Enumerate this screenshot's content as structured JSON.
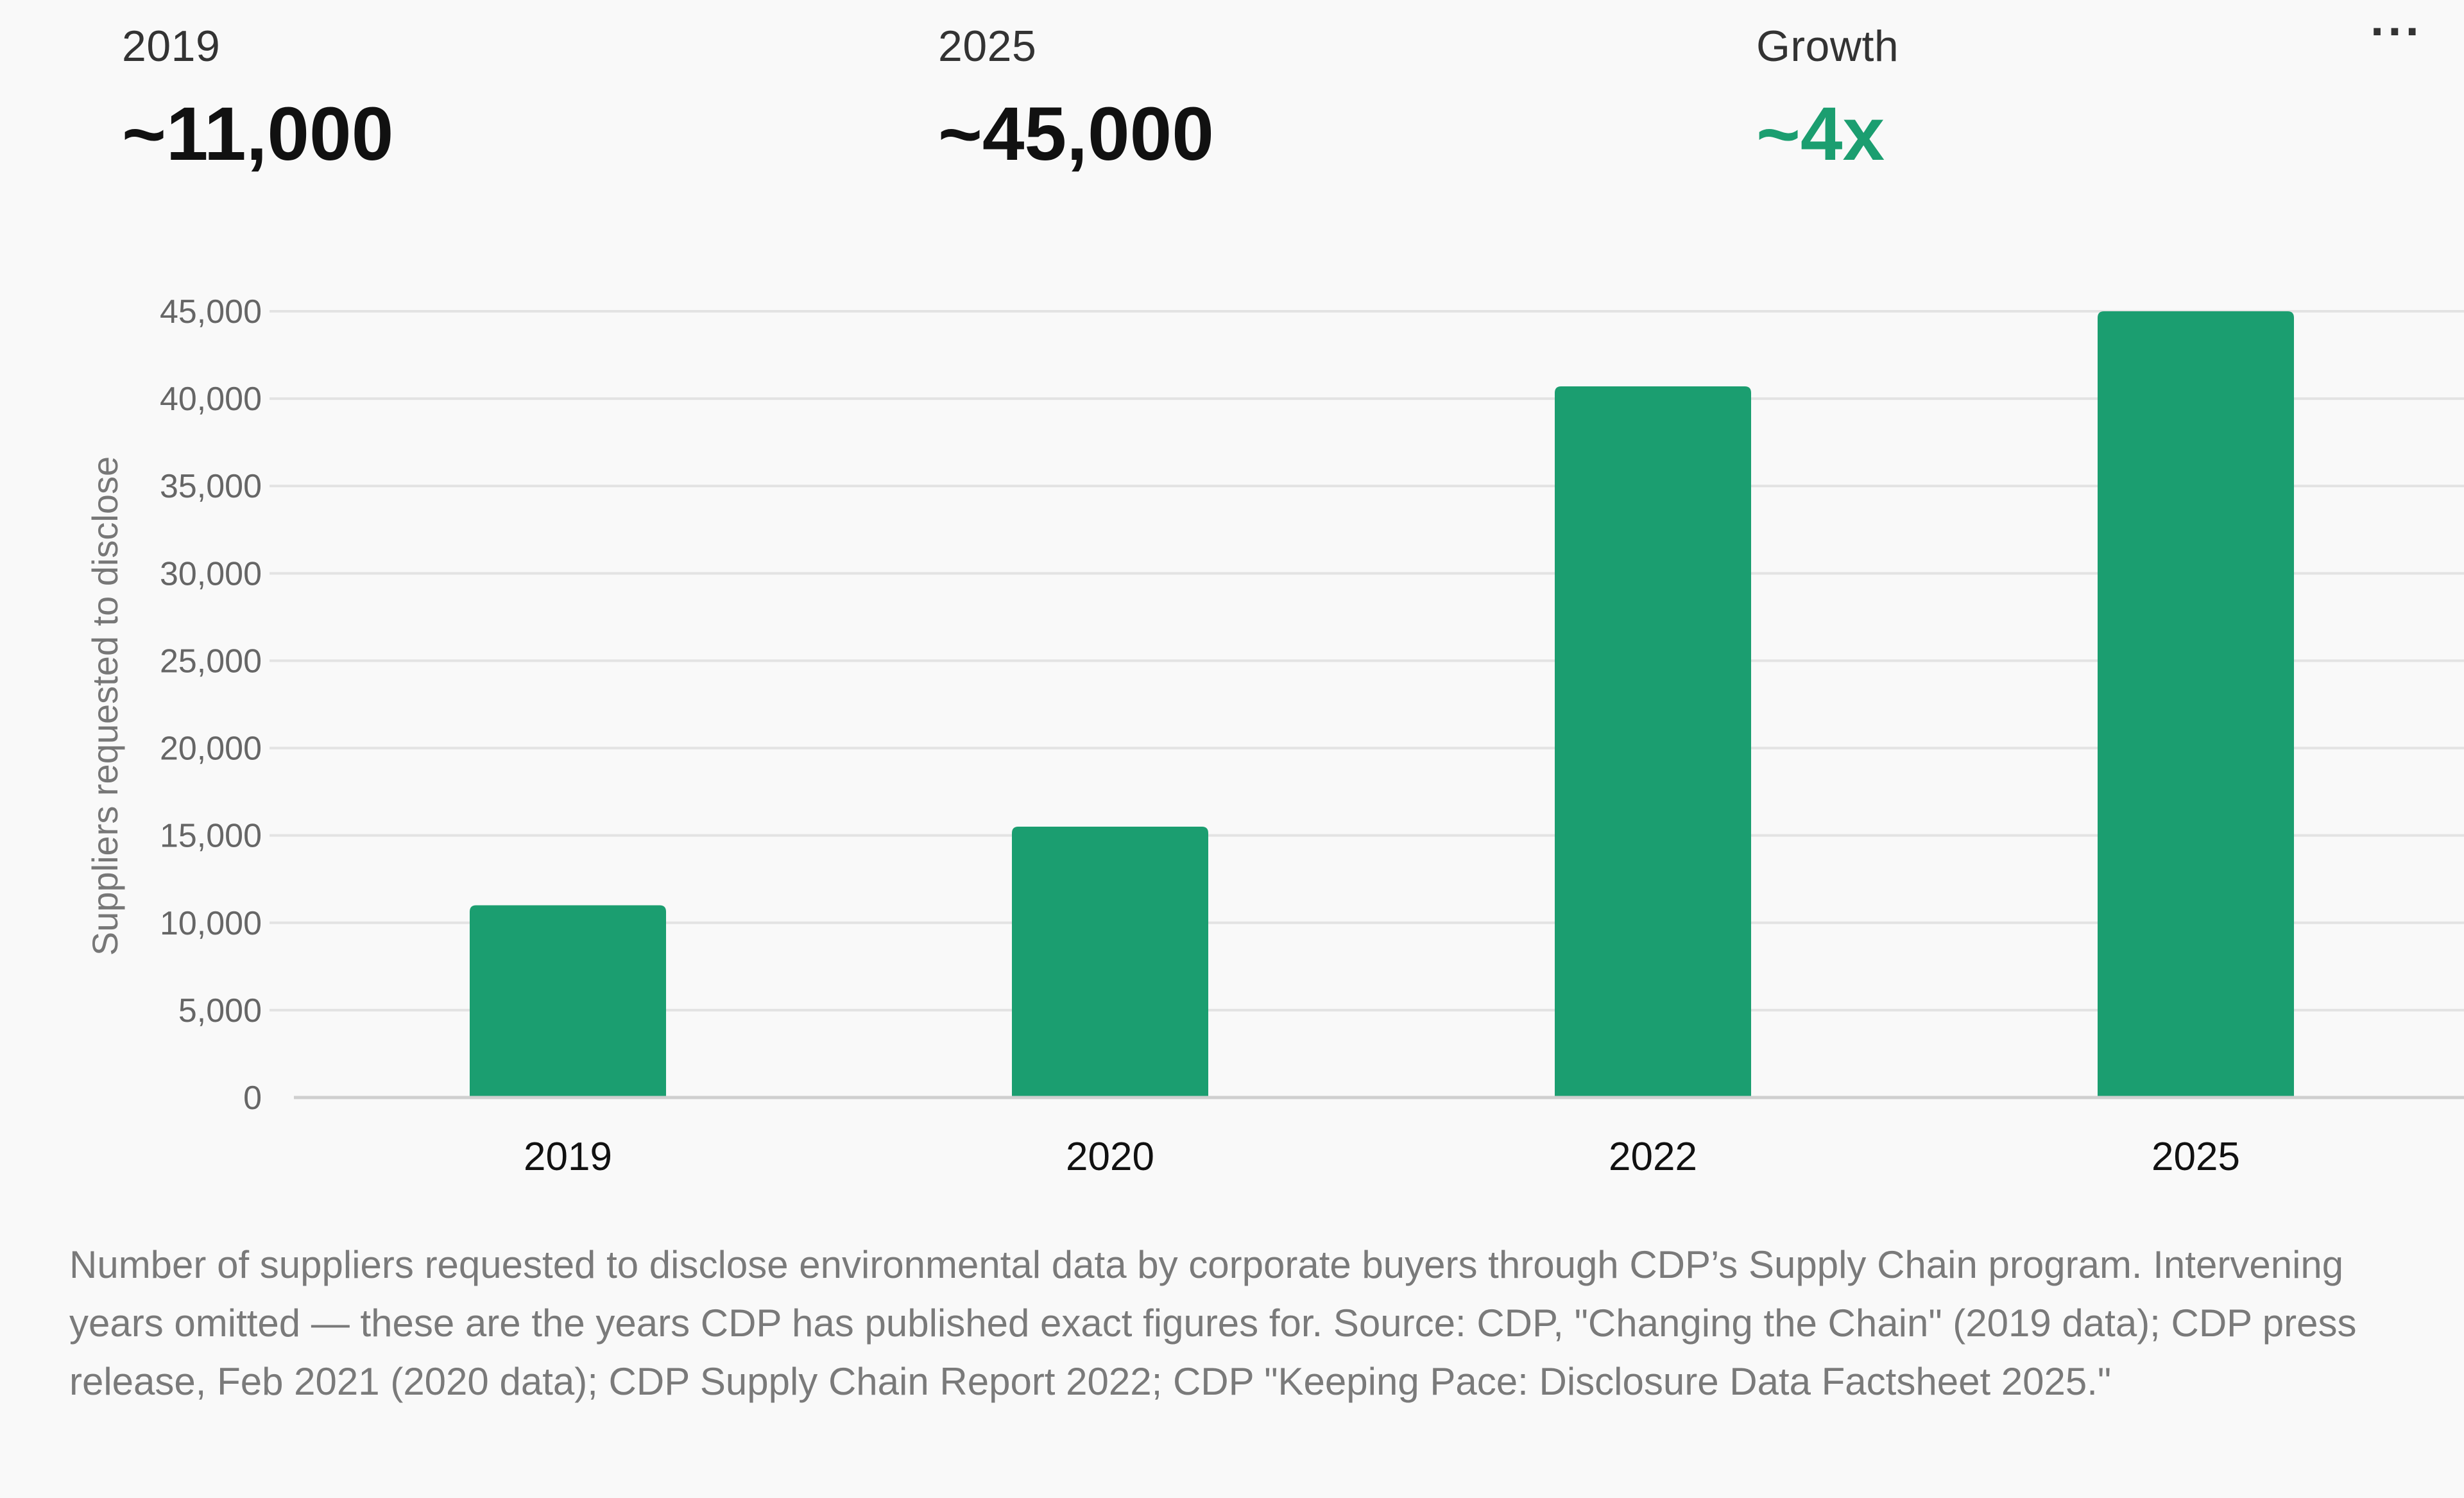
{
  "stats": [
    {
      "label": "2019",
      "value": "~11,000"
    },
    {
      "label": "2025",
      "value": "~45,000"
    },
    {
      "label": "Growth",
      "value": "~4x"
    }
  ],
  "menu": {
    "more_label": "···"
  },
  "colors": {
    "bar": "#1b9e70",
    "accent": "#1b9e70",
    "grid": "#e3e3e3",
    "axis": "#cfcfcf"
  },
  "chart_data": {
    "type": "bar",
    "categories": [
      "2019",
      "2020",
      "2022",
      "2025"
    ],
    "values": [
      11000,
      15500,
      40700,
      45000
    ],
    "title": "",
    "xlabel": "",
    "ylabel": "Suppliers requested to disclose",
    "ylim": [
      0,
      45000
    ],
    "yticks": [
      0,
      5000,
      10000,
      15000,
      20000,
      25000,
      30000,
      35000,
      40000,
      45000
    ],
    "ytick_labels": [
      "0",
      "5,000",
      "10,000",
      "15,000",
      "20,000",
      "25,000",
      "30,000",
      "35,000",
      "40,000",
      "45,000"
    ],
    "grid": true,
    "legend": "none"
  },
  "caption": "Number of suppliers requested to disclose environmental data by corporate buyers through CDP’s Supply Chain program. Intervening years omitted — these are the years CDP has published exact figures for. Source: CDP, \"Changing the Chain\" (2019 data); CDP press release, Feb 2021 (2020 data); CDP Supply Chain Report 2022; CDP \"Keeping Pace: Disclosure Data Factsheet 2025.\""
}
